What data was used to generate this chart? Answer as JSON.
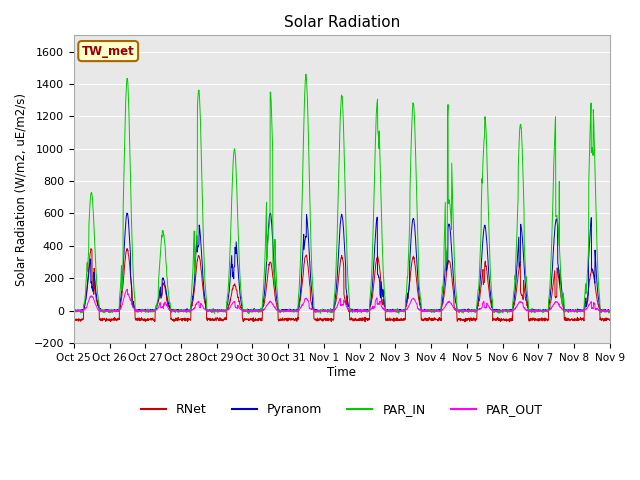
{
  "title": "Solar Radiation",
  "ylabel": "Solar Radiation (W/m2, uE/m2/s)",
  "xlabel": "Time",
  "ylim": [
    -200,
    1700
  ],
  "yticks": [
    -200,
    0,
    200,
    400,
    600,
    800,
    1000,
    1200,
    1400,
    1600
  ],
  "xtick_labels": [
    "Oct 25",
    "Oct 26",
    "Oct 27",
    "Oct 28",
    "Oct 29",
    "Oct 30",
    "Oct 31",
    "Nov 1",
    "Nov 2",
    "Nov 3",
    "Nov 4",
    "Nov 5",
    "Nov 6",
    "Nov 7",
    "Nov 8",
    "Nov 9"
  ],
  "station_label": "TW_met",
  "colors": {
    "RNet": "#cc0000",
    "Pyranom": "#0000cc",
    "PAR_IN": "#00cc00",
    "PAR_OUT": "#ff00ff"
  },
  "fig_bg": "#ffffff",
  "plot_bg": "#e8e8e8",
  "grid_color": "#ffffff",
  "n_days": 15,
  "pts_per_day": 144,
  "par_in_peaks": [
    730,
    1430,
    490,
    1360,
    995,
    1350,
    1450,
    1330,
    1300,
    1280,
    1270,
    1200,
    1150,
    1200,
    1280
  ],
  "pyranom_peaks": [
    320,
    600,
    200,
    530,
    425,
    600,
    595,
    590,
    575,
    570,
    535,
    525,
    530,
    565,
    565
  ],
  "rnet_peaks": [
    380,
    380,
    170,
    340,
    160,
    300,
    340,
    330,
    330,
    330,
    310,
    300,
    285,
    265,
    250
  ],
  "par_out_peaks": [
    90,
    130,
    55,
    55,
    55,
    55,
    75,
    75,
    75,
    75,
    55,
    55,
    55,
    55,
    55
  ]
}
